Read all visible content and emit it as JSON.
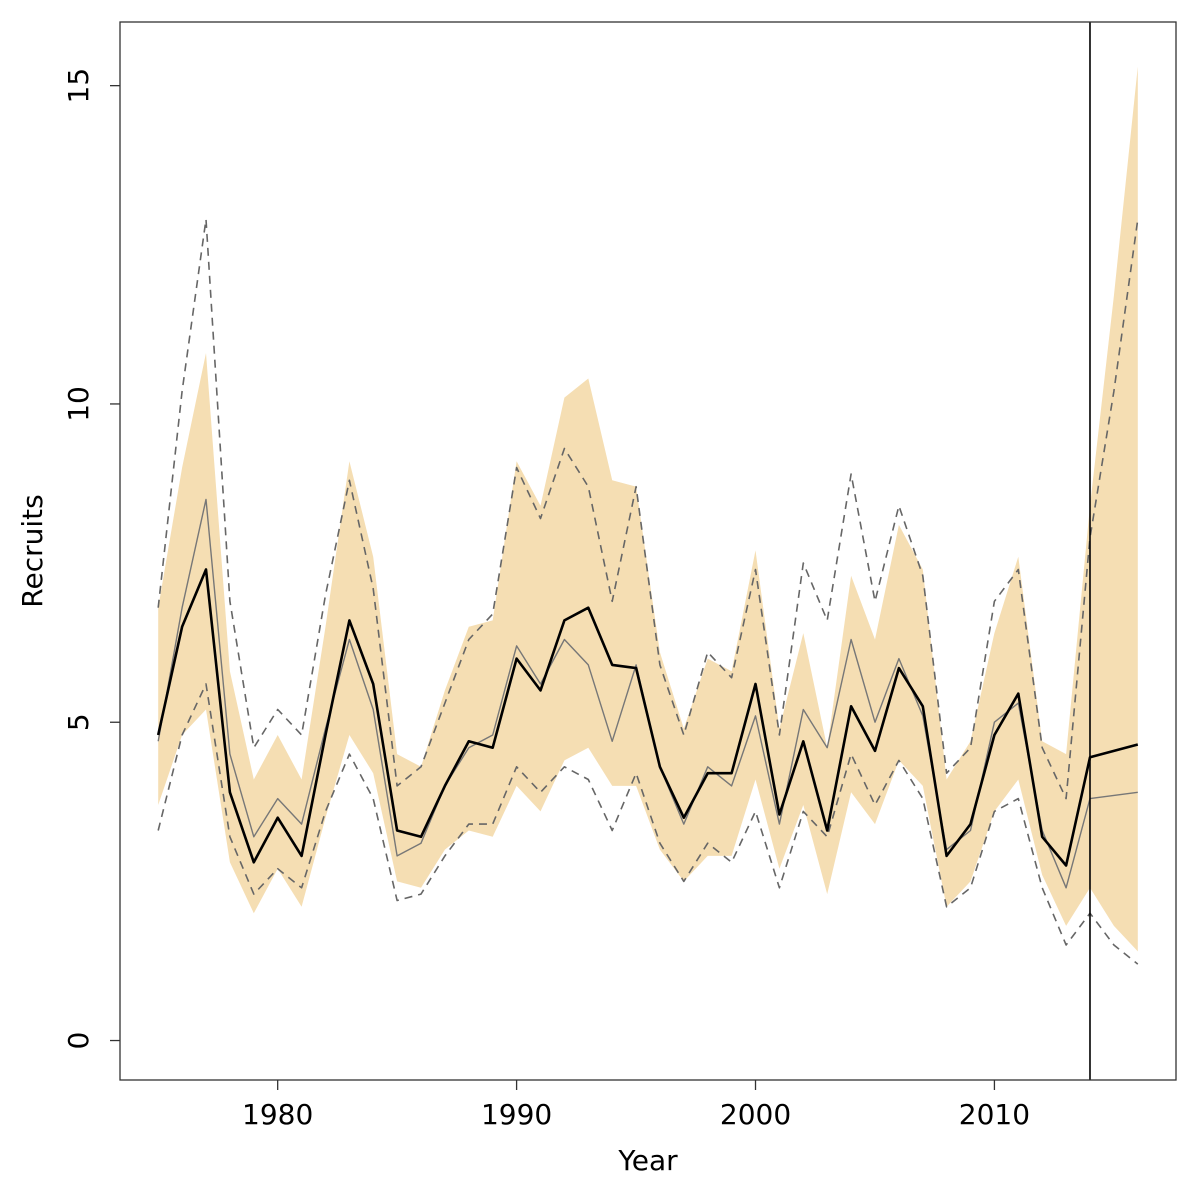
{
  "chart_data": {
    "type": "line",
    "xlabel": "Year",
    "ylabel": "Recruits",
    "xlim": [
      1973.4,
      2017.6
    ],
    "ylim": [
      -0.62,
      16.0
    ],
    "x_ticks": [
      1980,
      1990,
      2000,
      2010
    ],
    "y_ticks": [
      0,
      5,
      10,
      15
    ],
    "grid": false,
    "legend": "none",
    "x": [
      1975,
      1976,
      1977,
      1978,
      1979,
      1980,
      1981,
      1982,
      1983,
      1984,
      1985,
      1986,
      1987,
      1988,
      1989,
      1990,
      1991,
      1992,
      1993,
      1994,
      1995,
      1996,
      1997,
      1998,
      1999,
      2000,
      2001,
      2002,
      2003,
      2004,
      2005,
      2006,
      2007,
      2008,
      2009,
      2010,
      2011,
      2012,
      2013,
      2014,
      2015,
      2016
    ],
    "band": {
      "color": "#f5deb3",
      "lower": [
        3.7,
        4.8,
        5.2,
        2.8,
        2.0,
        2.7,
        2.1,
        3.5,
        4.8,
        4.2,
        2.5,
        2.4,
        3.0,
        3.3,
        3.2,
        4.0,
        3.6,
        4.4,
        4.6,
        4.0,
        4.0,
        3.0,
        2.5,
        2.9,
        2.9,
        4.1,
        2.7,
        3.7,
        2.3,
        3.9,
        3.4,
        4.4,
        4.0,
        2.1,
        2.5,
        3.6,
        4.1,
        2.6,
        1.8,
        2.4,
        1.8,
        1.4
      ],
      "upper": [
        6.8,
        9.0,
        10.8,
        5.8,
        4.1,
        4.8,
        4.1,
        6.5,
        9.1,
        7.6,
        4.5,
        4.3,
        5.5,
        6.5,
        6.6,
        9.1,
        8.4,
        10.1,
        10.4,
        8.8,
        8.7,
        6.1,
        4.9,
        6.0,
        5.8,
        7.7,
        4.9,
        6.4,
        4.6,
        7.3,
        6.3,
        8.1,
        7.4,
        4.1,
        4.7,
        6.4,
        7.6,
        4.7,
        4.5,
        8.4,
        11.7,
        15.3
      ]
    },
    "series": [
      {
        "color": "#000000",
        "style": "solid-thick",
        "values": [
          4.8,
          6.5,
          7.4,
          3.9,
          2.8,
          3.5,
          2.9,
          4.8,
          6.6,
          5.6,
          3.3,
          3.2,
          4.0,
          4.7,
          4.6,
          6.0,
          5.5,
          6.6,
          6.8,
          5.9,
          5.85,
          4.3,
          3.5,
          4.2,
          4.2,
          5.6,
          3.55,
          4.7,
          3.3,
          5.25,
          4.55,
          5.85,
          5.25,
          2.9,
          3.4,
          4.8,
          5.45,
          3.2,
          2.75,
          4.45,
          4.55,
          4.65
        ]
      },
      {
        "color": "#777777",
        "style": "solid-thin",
        "values": [
          4.7,
          6.8,
          8.5,
          4.5,
          3.2,
          3.8,
          3.4,
          4.9,
          6.3,
          5.2,
          2.9,
          3.1,
          4.0,
          4.6,
          4.8,
          6.2,
          5.6,
          6.3,
          5.9,
          4.7,
          5.9,
          4.3,
          3.4,
          4.3,
          4.0,
          5.1,
          3.4,
          5.2,
          4.6,
          6.3,
          5.0,
          6.0,
          5.1,
          3.0,
          3.3,
          5.0,
          5.3,
          3.3,
          2.4,
          3.8,
          3.85,
          3.9
        ]
      },
      {
        "color": "#666666",
        "style": "dashed",
        "values": [
          3.3,
          4.8,
          5.6,
          3.2,
          2.3,
          2.7,
          2.4,
          3.6,
          4.5,
          3.8,
          2.2,
          2.3,
          2.9,
          3.4,
          3.4,
          4.3,
          3.9,
          4.3,
          4.1,
          3.3,
          4.2,
          3.1,
          2.5,
          3.1,
          2.8,
          3.6,
          2.4,
          3.6,
          3.2,
          4.5,
          3.7,
          4.4,
          3.8,
          2.1,
          2.4,
          3.6,
          3.8,
          2.4,
          1.5,
          2.0,
          1.5,
          1.2
        ]
      },
      {
        "color": "#666666",
        "style": "dashed",
        "values": [
          6.8,
          10.2,
          12.9,
          6.9,
          4.6,
          5.2,
          4.8,
          7.0,
          8.8,
          7.1,
          4.0,
          4.3,
          5.3,
          6.3,
          6.7,
          9.0,
          8.2,
          9.3,
          8.7,
          6.9,
          8.7,
          5.9,
          4.8,
          6.1,
          5.7,
          7.4,
          4.8,
          7.5,
          6.6,
          8.9,
          6.9,
          8.4,
          7.3,
          4.2,
          4.6,
          6.9,
          7.4,
          4.6,
          3.8,
          7.9,
          10.2,
          12.9
        ]
      }
    ],
    "vertical_line_x": 2014
  }
}
